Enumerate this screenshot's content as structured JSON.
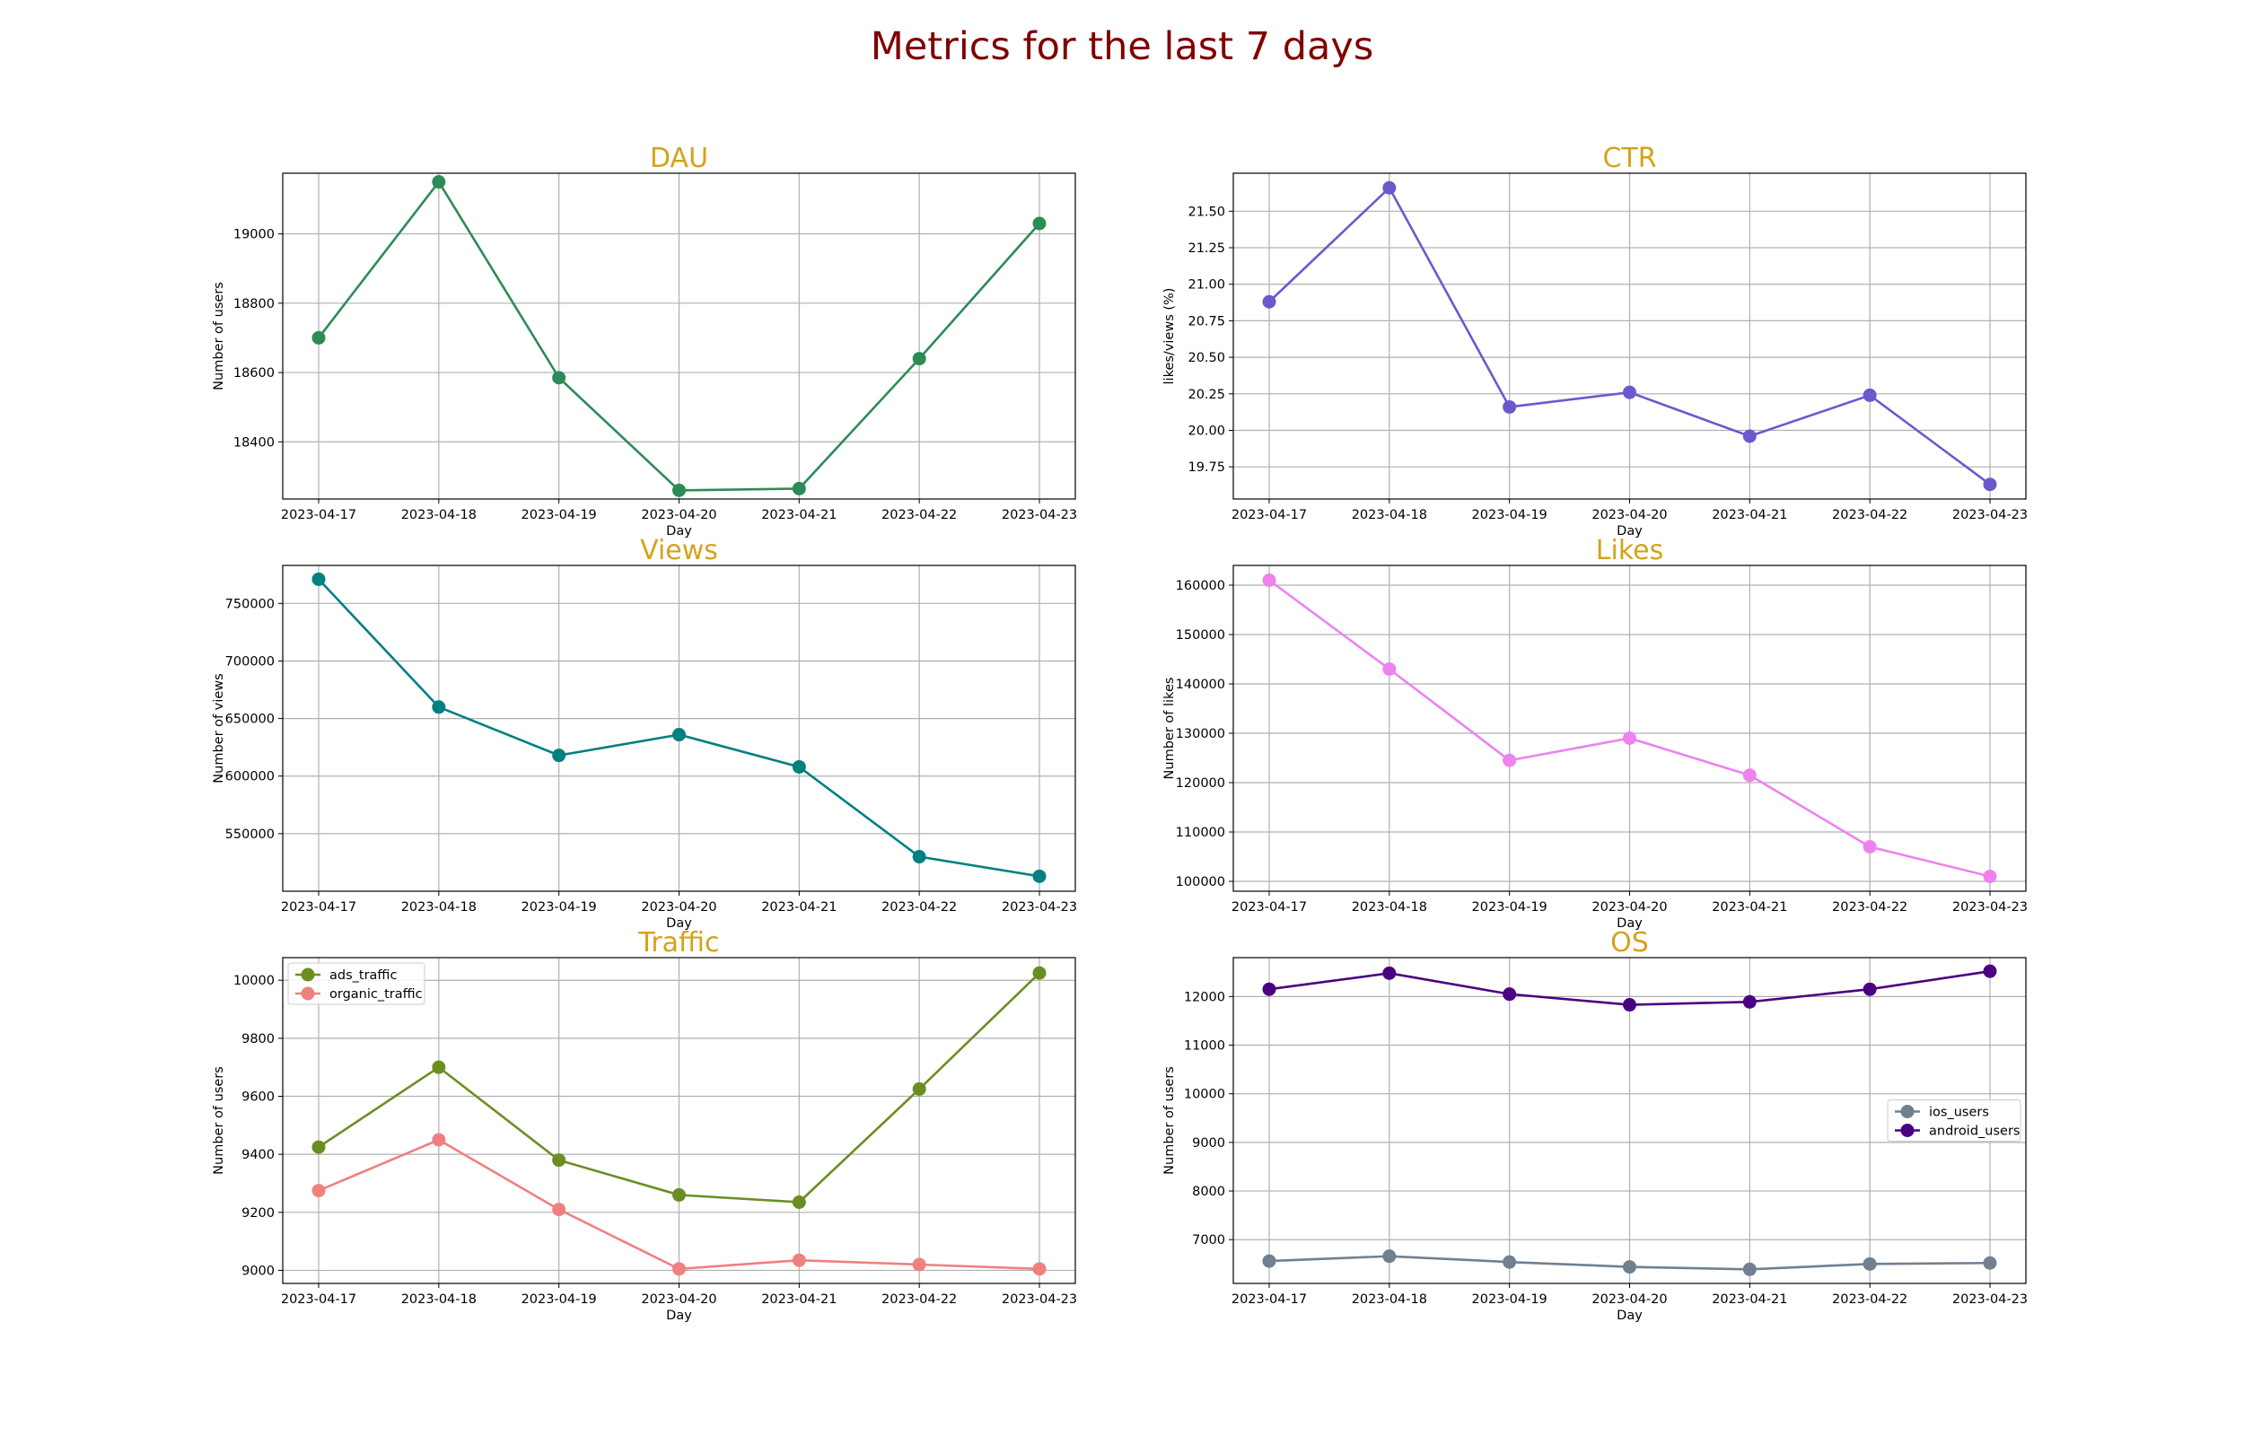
{
  "title": "Metrics for the last 7 days",
  "colors": {
    "title": "#800000",
    "subtitle": "#d4a31c"
  },
  "chart_data": [
    {
      "type": "line",
      "title": "DAU",
      "xlabel": "Day",
      "ylabel": "Number of users",
      "categories": [
        "2023-04-17",
        "2023-04-18",
        "2023-04-19",
        "2023-04-20",
        "2023-04-21",
        "2023-04-22",
        "2023-04-23"
      ],
      "series": [
        {
          "values": [
            18700,
            19150,
            18585,
            18260,
            18265,
            18640,
            19030
          ],
          "color": "#2e8b57"
        }
      ],
      "ylim": [
        18235,
        19175
      ],
      "yticks": [
        18400,
        18600,
        18800,
        19000
      ],
      "grid": true,
      "legend": null
    },
    {
      "type": "line",
      "title": "CTR",
      "xlabel": "Day",
      "ylabel": "likes/views (%)",
      "categories": [
        "2023-04-17",
        "2023-04-18",
        "2023-04-19",
        "2023-04-20",
        "2023-04-21",
        "2023-04-22",
        "2023-04-23"
      ],
      "series": [
        {
          "values": [
            20.88,
            21.66,
            20.16,
            20.26,
            19.96,
            20.24,
            19.63
          ],
          "color": "#6a5acd"
        }
      ],
      "ylim": [
        19.53,
        21.76
      ],
      "yticks": [
        19.75,
        20.0,
        20.25,
        20.5,
        20.75,
        21.0,
        21.25,
        21.5
      ],
      "ytick_labels": [
        "19.75",
        "20.00",
        "20.25",
        "20.50",
        "20.75",
        "21.00",
        "21.25",
        "21.50"
      ],
      "grid": true,
      "legend": null
    },
    {
      "type": "line",
      "title": "Views",
      "xlabel": "Day",
      "ylabel": "Number of views",
      "categories": [
        "2023-04-17",
        "2023-04-18",
        "2023-04-19",
        "2023-04-20",
        "2023-04-21",
        "2023-04-22",
        "2023-04-23"
      ],
      "series": [
        {
          "values": [
            771000,
            660000,
            618000,
            636000,
            608000,
            530000,
            513000
          ],
          "color": "#008080"
        }
      ],
      "ylim": [
        500000,
        783000
      ],
      "yticks": [
        550000,
        600000,
        650000,
        700000,
        750000
      ],
      "grid": true,
      "legend": null
    },
    {
      "type": "line",
      "title": "Likes",
      "xlabel": "Day",
      "ylabel": "Number of likes",
      "categories": [
        "2023-04-17",
        "2023-04-18",
        "2023-04-19",
        "2023-04-20",
        "2023-04-21",
        "2023-04-22",
        "2023-04-23"
      ],
      "series": [
        {
          "values": [
            161000,
            143000,
            124500,
            129000,
            121500,
            107000,
            101000
          ],
          "color": "#ee82ee"
        }
      ],
      "ylim": [
        98000,
        164000
      ],
      "yticks": [
        100000,
        110000,
        120000,
        130000,
        140000,
        150000,
        160000
      ],
      "grid": true,
      "legend": null
    },
    {
      "type": "line",
      "title": "Traffic",
      "xlabel": "Day",
      "ylabel": "Number of users",
      "categories": [
        "2023-04-17",
        "2023-04-18",
        "2023-04-19",
        "2023-04-20",
        "2023-04-21",
        "2023-04-22",
        "2023-04-23"
      ],
      "series": [
        {
          "name": "ads_traffic",
          "values": [
            9425,
            9700,
            9380,
            9260,
            9235,
            9625,
            10025
          ],
          "color": "#6b8e23"
        },
        {
          "name": "organic_traffic",
          "values": [
            9275,
            9450,
            9210,
            9005,
            9035,
            9020,
            9005
          ],
          "color": "#f08080"
        }
      ],
      "ylim": [
        8955,
        10078
      ],
      "yticks": [
        9000,
        9200,
        9400,
        9600,
        9800,
        10000
      ],
      "grid": true,
      "legend": "upper-left"
    },
    {
      "type": "line",
      "title": "OS",
      "xlabel": "Day",
      "ylabel": "Number of users",
      "categories": [
        "2023-04-17",
        "2023-04-18",
        "2023-04-19",
        "2023-04-20",
        "2023-04-21",
        "2023-04-22",
        "2023-04-23"
      ],
      "series": [
        {
          "name": "ios_users",
          "values": [
            6560,
            6660,
            6540,
            6440,
            6390,
            6500,
            6520
          ],
          "color": "#708090"
        },
        {
          "name": "android_users",
          "values": [
            12150,
            12480,
            12050,
            11830,
            11890,
            12150,
            12520
          ],
          "color": "#4b0082"
        }
      ],
      "ylim": [
        6100,
        12800
      ],
      "yticks": [
        7000,
        8000,
        9000,
        10000,
        11000,
        12000
      ],
      "grid": true,
      "legend": "center-right"
    }
  ]
}
